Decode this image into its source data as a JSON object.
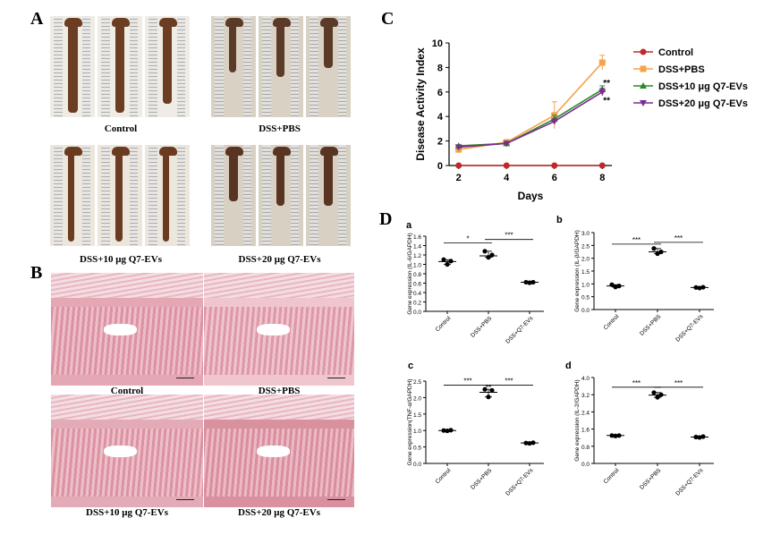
{
  "panels": {
    "A": {
      "letter": "A",
      "groups": [
        {
          "label": "Control",
          "colon_color": "#6b3d22",
          "photo_tint": "#efece5"
        },
        {
          "label": "DSS+PBS",
          "colon_color": "#5c3a28",
          "photo_tint": "#d9d2c4"
        },
        {
          "label": "DSS+10 μg Q7-EVs",
          "colon_color": "#6a3b20",
          "photo_tint": "#ece6dc"
        },
        {
          "label": "DSS+20 μg Q7-EVs",
          "colon_color": "#5a3422",
          "photo_tint": "#d7d0c3"
        }
      ]
    },
    "B": {
      "letter": "B",
      "groups": [
        {
          "label": "Control",
          "tissue_color": "#e5a7b4"
        },
        {
          "label": "DSS+PBS",
          "tissue_color": "#efc6ce"
        },
        {
          "label": "DSS+10 μg Q7-EVs",
          "tissue_color": "#e3abb7"
        },
        {
          "label": "DSS+20 μg Q7-EVs",
          "tissue_color": "#d9919f"
        }
      ]
    },
    "C": {
      "letter": "C"
    },
    "D": {
      "letter": "D",
      "categories": [
        "Control",
        "DSS+PBS",
        "DSS+Q7-EVs"
      ]
    }
  },
  "chart_data": [
    {
      "id": "C",
      "type": "line",
      "ylabel": "Disease Activity Index",
      "xlabel": "Days",
      "x": [
        2,
        4,
        6,
        8
      ],
      "xticks": [
        "2",
        "4",
        "6",
        "8"
      ],
      "ylim": [
        0,
        10
      ],
      "yticks": [
        "0",
        "2",
        "4",
        "6",
        "8",
        "10"
      ],
      "series": [
        {
          "name": "Control",
          "color": "#c0282b",
          "marker": "circle",
          "values": [
            0,
            0,
            0,
            0
          ],
          "errors": [
            0,
            0,
            0,
            0
          ]
        },
        {
          "name": "DSS+PBS",
          "color": "#f5a24b",
          "marker": "square",
          "values": [
            1.3,
            1.9,
            4.1,
            8.4
          ],
          "errors": [
            0.1,
            0.2,
            1.1,
            0.6
          ]
        },
        {
          "name": "DSS+10 μg Q7-EVs",
          "color": "#2a8a2a",
          "marker": "triangle-up",
          "values": [
            1.6,
            1.8,
            3.8,
            6.2
          ],
          "errors": [
            0.1,
            0.1,
            0.3,
            0.3
          ]
        },
        {
          "name": "DSS+20 μg Q7-EVs",
          "color": "#7b2d8e",
          "marker": "triangle-down",
          "values": [
            1.5,
            1.8,
            3.6,
            6.0
          ],
          "errors": [
            0.1,
            0.1,
            0.2,
            0.3
          ]
        }
      ],
      "annotations": [
        "**",
        "**"
      ],
      "legend": "right"
    },
    {
      "id": "a",
      "type": "scatter",
      "letter": "a",
      "ylabel": "Gene expression (IL-6/GAPDH)",
      "ylim": [
        0,
        1.6
      ],
      "yticks": [
        "0.0",
        "0.2",
        "0.4",
        "0.6",
        "0.8",
        "1.0",
        "1.2",
        "1.4",
        "1.6"
      ],
      "groups": [
        {
          "points": [
            1.1,
            1.0,
            1.07
          ],
          "mean": 1.06
        },
        {
          "points": [
            1.28,
            1.15,
            1.2
          ],
          "mean": 1.18
        },
        {
          "points": [
            0.62,
            0.61,
            0.62
          ],
          "mean": 0.62
        }
      ],
      "significance": [
        {
          "from": 0,
          "to": 1,
          "label": "*",
          "y": 1.46
        },
        {
          "from": 1,
          "to": 2,
          "label": "***",
          "y": 1.53
        }
      ]
    },
    {
      "id": "b",
      "type": "scatter",
      "letter": "b",
      "ylabel": "Gene expression (IL-β/GAPDH)",
      "ylim": [
        0,
        3.0
      ],
      "yticks": [
        "0.0",
        "0.5",
        "1.0",
        "1.5",
        "2.0",
        "2.5",
        "3.0"
      ],
      "groups": [
        {
          "points": [
            0.97,
            0.88,
            0.92
          ],
          "mean": 0.92
        },
        {
          "points": [
            2.38,
            2.18,
            2.25
          ],
          "mean": 2.25
        },
        {
          "points": [
            0.86,
            0.84,
            0.87
          ],
          "mean": 0.86
        }
      ],
      "significance": [
        {
          "from": 0,
          "to": 1,
          "label": "***",
          "y": 2.55
        },
        {
          "from": 1,
          "to": 2,
          "label": "***",
          "y": 2.62
        }
      ]
    },
    {
      "id": "c",
      "type": "scatter",
      "letter": "c",
      "ylabel": "Gene expression(TNF-α/GAPDH)",
      "ylim": [
        0,
        2.5
      ],
      "yticks": [
        "0.0",
        "0.5",
        "1.0",
        "1.5",
        "2.0",
        "2.5"
      ],
      "groups": [
        {
          "points": [
            1.0,
            0.99,
            1.01
          ],
          "mean": 1.0
        },
        {
          "points": [
            2.25,
            2.02,
            2.22
          ],
          "mean": 2.16
        },
        {
          "points": [
            0.62,
            0.61,
            0.63
          ],
          "mean": 0.62
        }
      ],
      "significance": [
        {
          "from": 0,
          "to": 1,
          "label": "***",
          "y": 2.38
        },
        {
          "from": 1,
          "to": 2,
          "label": "***",
          "y": 2.38
        }
      ],
      "extra_labels": [
        {
          "group": 1,
          "label": "**",
          "y": 2.28
        }
      ]
    },
    {
      "id": "d",
      "type": "scatter",
      "letter": "d",
      "ylabel": "Gene expression (IL-2/GAPDH)",
      "ylim": [
        0,
        4.0
      ],
      "yticks": [
        "0.0",
        "0.8",
        "1.6",
        "2.4",
        "3.2",
        "4.0"
      ],
      "ytick_values": [
        0.0,
        0.8,
        1.6,
        2.4,
        3.2,
        4.0
      ],
      "groups": [
        {
          "points": [
            1.3,
            1.28,
            1.3
          ],
          "mean": 1.3
        },
        {
          "points": [
            3.3,
            3.08,
            3.2
          ],
          "mean": 3.18
        },
        {
          "points": [
            1.23,
            1.21,
            1.25
          ],
          "mean": 1.23
        }
      ],
      "significance": [
        {
          "from": 0,
          "to": 1,
          "label": "***",
          "y": 3.55
        },
        {
          "from": 1,
          "to": 2,
          "label": "***",
          "y": 3.55
        }
      ]
    }
  ]
}
